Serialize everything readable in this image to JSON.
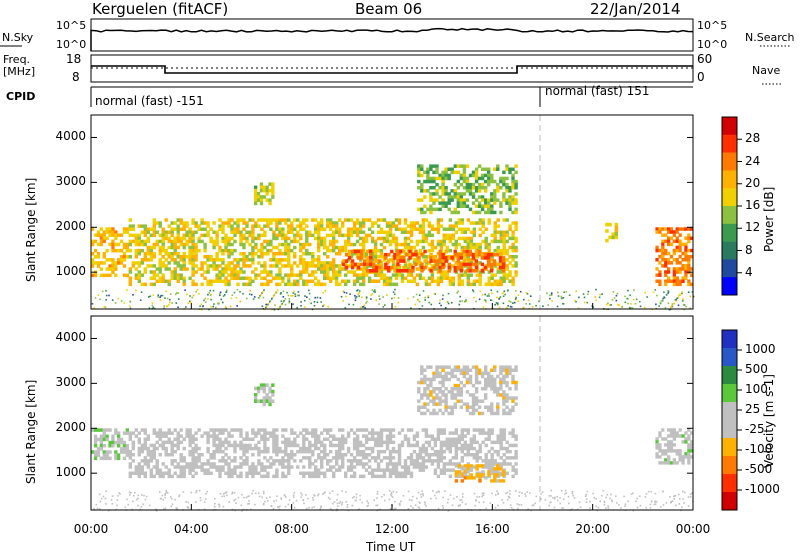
{
  "header": {
    "station": "Kerguelen (fitACF)",
    "beam": "Beam 06",
    "date": "22/Jan/2014"
  },
  "status_panels": {
    "nsky_label": "N.Sky",
    "nsearch_label": "N.Search",
    "noise_ticks": [
      "10^5",
      "10^0"
    ],
    "freq_label_line1": "Freq.",
    "freq_label_line2": "[MHz]",
    "freq_ticks": [
      "18",
      "8"
    ],
    "nave_label": "Nave",
    "nave_ticks": [
      "60",
      "0"
    ],
    "cpid_label": "CPID",
    "cpid_modes": [
      "normal (fast) -151",
      "normal (fast) 151"
    ]
  },
  "x_axis": {
    "label": "Time UT",
    "ticks": [
      "00:00",
      "04:00",
      "08:00",
      "12:00",
      "16:00",
      "20:00",
      "00:00"
    ]
  },
  "y_axis": {
    "label": "Slant Range [km]",
    "ticks": [
      "4000",
      "3000",
      "2000",
      "1000"
    ]
  },
  "power_colorbar": {
    "label": "Power [dB]",
    "ticks": [
      "28",
      "24",
      "20",
      "16",
      "12",
      "8",
      "4"
    ],
    "colors": [
      "#d00000",
      "#ff3000",
      "#ff7a00",
      "#ffb000",
      "#f0d000",
      "#8cc040",
      "#3a9a50",
      "#2a7a60",
      "#204aa0",
      "#0000ff"
    ]
  },
  "velocity_colorbar": {
    "label": "Velocity [m s-1]",
    "ticks": [
      "1000",
      "500",
      "100",
      "25",
      "-25",
      "-100",
      "-500",
      "-1000"
    ],
    "colors": [
      "#2030c0",
      "#2858c8",
      "#2a8a40",
      "#5ac83a",
      "#c0c0c0",
      "#c0c0c0",
      "#ffb000",
      "#ff7a00",
      "#ff3000",
      "#d00000"
    ]
  },
  "chart_data": [
    {
      "type": "heatmap",
      "title": "Power",
      "xlabel": "Time UT",
      "ylabel": "Slant Range [km]",
      "xlim": [
        "00:00",
        "24:00"
      ],
      "ylim": [
        180,
        4500
      ],
      "colorbar_label": "Power [dB]",
      "colorbar_range": [
        0,
        32
      ],
      "echo_regions": [
        {
          "t_start": 0.0,
          "t_end": 1.5,
          "range_min": 900,
          "range_max": 2000,
          "typical_value": 20
        },
        {
          "t_start": 1.5,
          "t_end": 17.0,
          "range_min": 700,
          "range_max": 2200,
          "typical_value": 18
        },
        {
          "t_start": 10.0,
          "t_end": 16.5,
          "range_min": 1000,
          "range_max": 1500,
          "typical_value": 26
        },
        {
          "t_start": 6.5,
          "t_end": 7.3,
          "range_min": 2500,
          "range_max": 3000,
          "typical_value": 16
        },
        {
          "t_start": 13.0,
          "t_end": 17.0,
          "range_min": 2300,
          "range_max": 3400,
          "typical_value": 14
        },
        {
          "t_start": 20.5,
          "t_end": 21.0,
          "range_min": 1600,
          "range_max": 2100,
          "typical_value": 18
        },
        {
          "t_start": 22.5,
          "t_end": 24.0,
          "range_min": 700,
          "range_max": 2000,
          "typical_value": 24
        }
      ]
    },
    {
      "type": "heatmap",
      "title": "Velocity",
      "xlabel": "Time UT",
      "ylabel": "Slant Range [km]",
      "xlim": [
        "00:00",
        "24:00"
      ],
      "ylim": [
        180,
        4500
      ],
      "colorbar_label": "Velocity [m s-1]",
      "colorbar_range": [
        -1000,
        1000
      ],
      "echo_regions": [
        {
          "t_start": 0.0,
          "t_end": 1.5,
          "range_min": 1300,
          "range_max": 2000,
          "typical_value": 150
        },
        {
          "t_start": 1.5,
          "t_end": 17.0,
          "range_min": 900,
          "range_max": 2000,
          "typical_value": 0
        },
        {
          "t_start": 14.5,
          "t_end": 16.5,
          "range_min": 800,
          "range_max": 1200,
          "typical_value": -300
        },
        {
          "t_start": 6.5,
          "t_end": 7.3,
          "range_min": 2500,
          "range_max": 3000,
          "typical_value": 150
        },
        {
          "t_start": 13.0,
          "t_end": 17.0,
          "range_min": 2300,
          "range_max": 3400,
          "typical_value": -100
        },
        {
          "t_start": 22.5,
          "t_end": 24.0,
          "range_min": 1200,
          "range_max": 2000,
          "typical_value": 100
        }
      ]
    }
  ]
}
